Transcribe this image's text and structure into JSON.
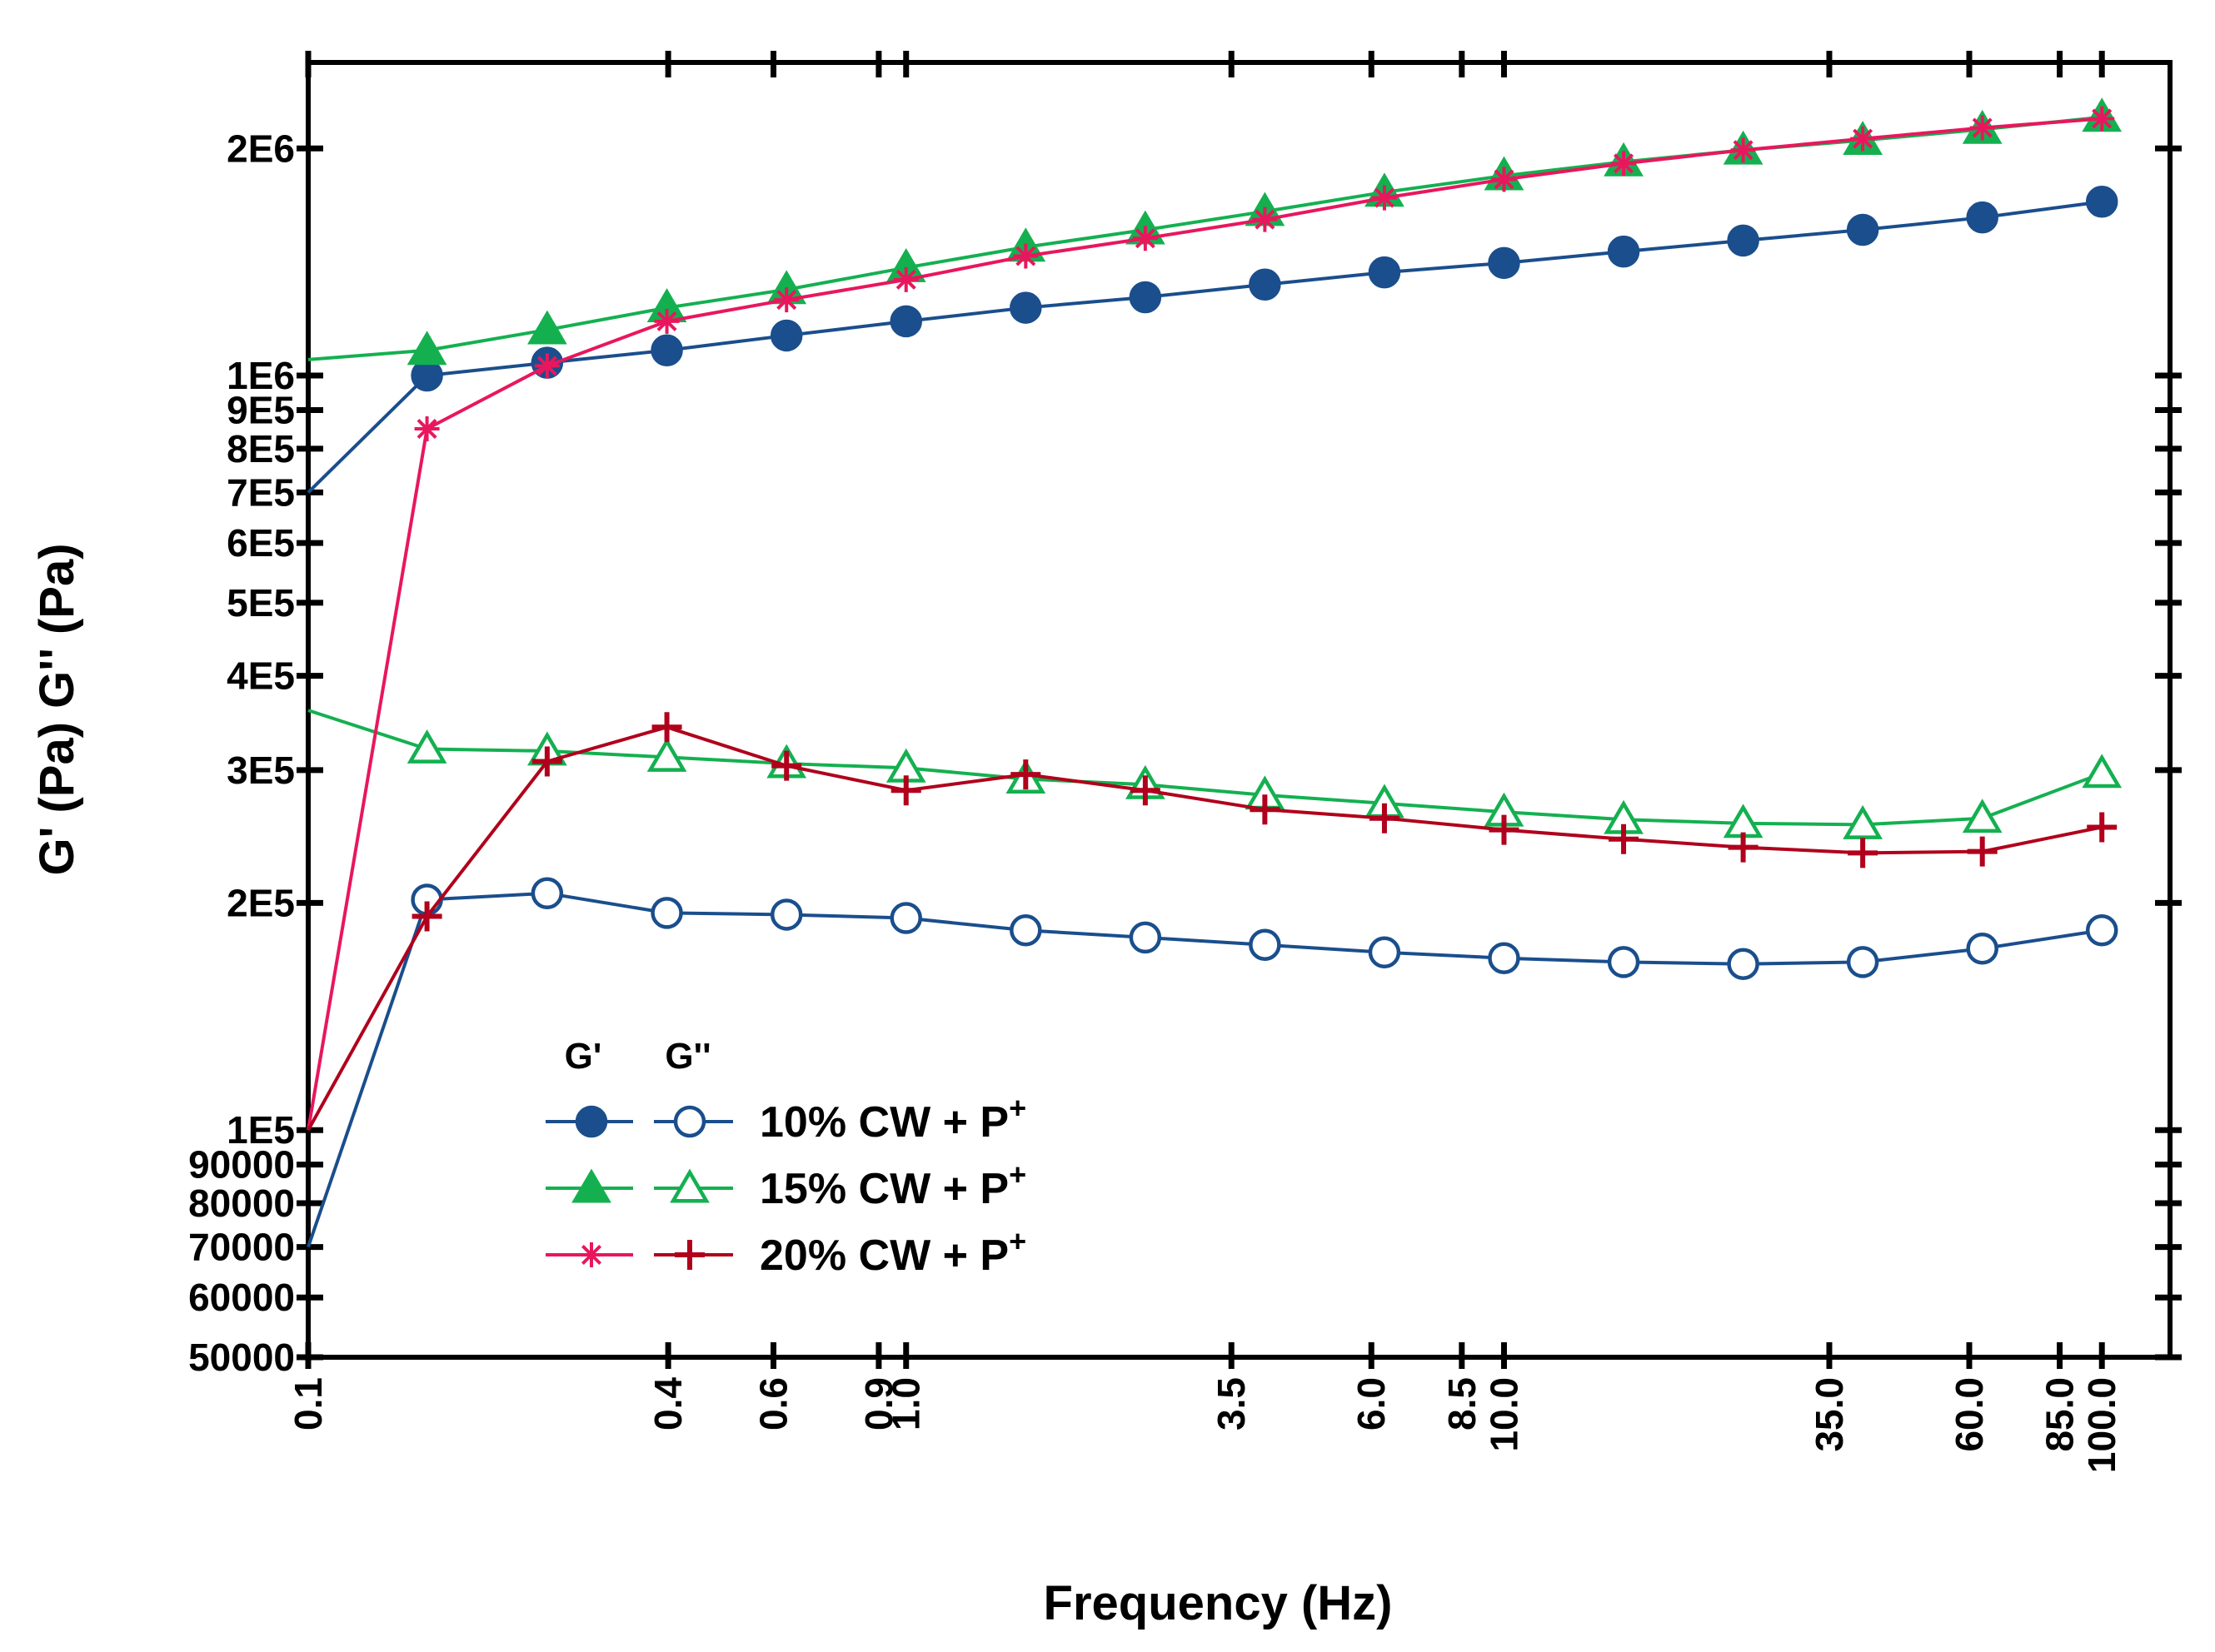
{
  "chart_data": {
    "type": "line",
    "title": "",
    "xlabel": "Frequency (Hz)",
    "ylabel": "G' (Pa)  G'' (Pa)",
    "xscale": "log",
    "yscale": "log",
    "xlim": [
      0.1,
      130
    ],
    "ylim": [
      50000,
      2600000
    ],
    "x_ticks": [
      {
        "value": 0.1,
        "label": "0.1"
      },
      {
        "value": 0.4,
        "label": "0.4"
      },
      {
        "value": 0.6,
        "label": "0.6"
      },
      {
        "value": 0.9,
        "label": "0.9"
      },
      {
        "value": 1.0,
        "label": "1.0"
      },
      {
        "value": 3.5,
        "label": "3.5"
      },
      {
        "value": 6.0,
        "label": "6.0"
      },
      {
        "value": 8.5,
        "label": "8.5"
      },
      {
        "value": 10.0,
        "label": "10.0"
      },
      {
        "value": 35.0,
        "label": "35.0"
      },
      {
        "value": 60.0,
        "label": "60.0"
      },
      {
        "value": 85.0,
        "label": "85.0"
      },
      {
        "value": 100.0,
        "label": "100.0"
      }
    ],
    "y_ticks": [
      {
        "value": 50000,
        "label": "50000"
      },
      {
        "value": 60000,
        "label": "60000"
      },
      {
        "value": 70000,
        "label": "70000"
      },
      {
        "value": 80000,
        "label": "80000"
      },
      {
        "value": 90000,
        "label": "90000"
      },
      {
        "value": 100000,
        "label": "1E5"
      },
      {
        "value": 200000,
        "label": "2E5"
      },
      {
        "value": 300000,
        "label": "3E5"
      },
      {
        "value": 400000,
        "label": "4E5"
      },
      {
        "value": 500000,
        "label": "5E5"
      },
      {
        "value": 600000,
        "label": "6E5"
      },
      {
        "value": 700000,
        "label": "7E5"
      },
      {
        "value": 800000,
        "label": "8E5"
      },
      {
        "value": 900000,
        "label": "9E5"
      },
      {
        "value": 1000000,
        "label": "1E6"
      },
      {
        "value": 2000000,
        "label": "2E6"
      }
    ],
    "x": [
      0.1,
      0.158,
      0.251,
      0.398,
      0.631,
      1.0,
      1.585,
      2.512,
      3.981,
      6.31,
      10.0,
      15.85,
      25.12,
      39.81,
      63.1,
      100.0
    ],
    "series": [
      {
        "name": "10% CW + P+ G'",
        "modulus": "G'",
        "group": "10% CW + P",
        "color": "#1a4e8c",
        "marker": "circle",
        "filled": true,
        "values": [
          700000,
          1000000,
          1040000,
          1080000,
          1130000,
          1180000,
          1230000,
          1270000,
          1320000,
          1370000,
          1410000,
          1460000,
          1510000,
          1560000,
          1620000,
          1700000
        ]
      },
      {
        "name": "10% CW + P+ G''",
        "modulus": "G''",
        "group": "10% CW + P",
        "color": "#1a4e8c",
        "marker": "circle",
        "filled": false,
        "values": [
          70000,
          202000,
          206000,
          194000,
          193000,
          191000,
          184000,
          180000,
          176000,
          172000,
          169000,
          167000,
          166000,
          167000,
          174000,
          184000
        ]
      },
      {
        "name": "15% CW + P+ G'",
        "modulus": "G'",
        "group": "15% CW + P",
        "color": "#14b050",
        "marker": "triangle",
        "filled": true,
        "values": [
          1050000,
          1080000,
          1150000,
          1230000,
          1300000,
          1390000,
          1480000,
          1560000,
          1650000,
          1750000,
          1840000,
          1920000,
          1990000,
          2050000,
          2120000,
          2200000
        ]
      },
      {
        "name": "15% CW + P+ G''",
        "modulus": "G''",
        "group": "15% CW + P",
        "color": "#14b050",
        "marker": "triangle",
        "filled": false,
        "values": [
          360000,
          320000,
          318000,
          312000,
          306000,
          302000,
          292000,
          287000,
          278000,
          271000,
          264000,
          258000,
          255000,
          254000,
          259000,
          297000
        ]
      },
      {
        "name": "20% CW + P+ G'",
        "modulus": "G'",
        "group": "20% CW + P",
        "color": "#e8175d",
        "marker": "asterisk",
        "filled": true,
        "values": [
          100000,
          850000,
          1030000,
          1180000,
          1260000,
          1340000,
          1440000,
          1520000,
          1610000,
          1720000,
          1820000,
          1910000,
          1990000,
          2060000,
          2130000,
          2190000
        ]
      },
      {
        "name": "20% CW + P+ G''",
        "modulus": "G''",
        "group": "20% CW + P",
        "color": "#b0001c",
        "marker": "plus",
        "filled": false,
        "values": [
          100000,
          192000,
          308000,
          342000,
          304000,
          282000,
          296000,
          282000,
          266000,
          259000,
          250000,
          243000,
          237000,
          233000,
          234000,
          252000
        ]
      }
    ],
    "legend": {
      "position": "lower-left",
      "header_g1": "G'",
      "header_g2": "G''",
      "entries": [
        {
          "label": "10% CW + P",
          "sup": "+",
          "gp_series": 0,
          "gpp_series": 1
        },
        {
          "label": "15% CW + P",
          "sup": "+",
          "gp_series": 2,
          "gpp_series": 3
        },
        {
          "label": "20% CW + P",
          "sup": "+",
          "gp_series": 4,
          "gpp_series": 5
        }
      ]
    }
  }
}
